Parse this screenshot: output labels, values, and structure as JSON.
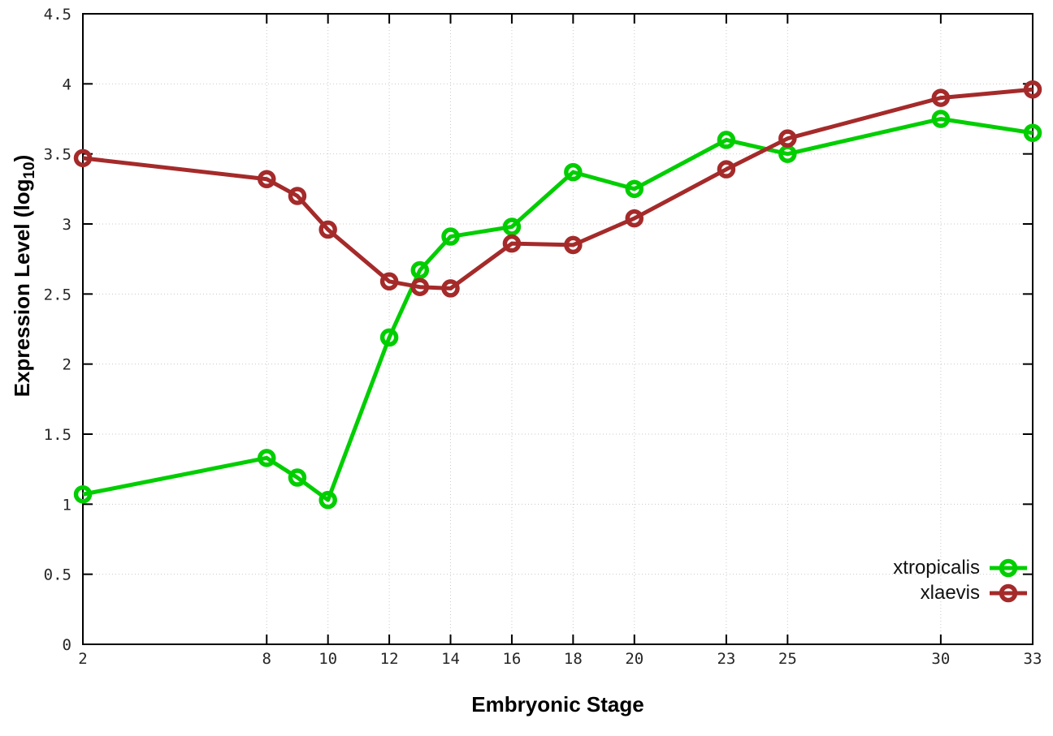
{
  "figure": {
    "background": "#ffffff"
  },
  "chart_data": {
    "type": "line",
    "title": "",
    "xlabel": "Embryonic Stage",
    "ylabel": "Expression Level (log10)",
    "ylabel_prefix": "Expression Level (log",
    "ylabel_sub": "10",
    "ylabel_suffix": ")",
    "xlim": [
      2,
      33
    ],
    "ylim": [
      0,
      4.5
    ],
    "x_ticks": [
      2,
      8,
      10,
      12,
      14,
      16,
      18,
      20,
      23,
      25,
      30,
      33
    ],
    "y_ticks": [
      0,
      0.5,
      1,
      1.5,
      2,
      2.5,
      3,
      3.5,
      4,
      4.5
    ],
    "grid": true,
    "legend_position": "inside-bottom-right",
    "axis_color": "#000000",
    "grid_color": "#c9c9c9",
    "tick_label_color": "#262626",
    "series": [
      {
        "name": "xtropicalis",
        "color": "#00ce00",
        "x": [
          2,
          8,
          9,
          10,
          12,
          13,
          14,
          16,
          18,
          20,
          23,
          25,
          30,
          33
        ],
        "values": [
          1.07,
          1.33,
          1.19,
          1.03,
          2.19,
          2.67,
          2.91,
          2.98,
          3.37,
          3.25,
          3.6,
          3.5,
          3.75,
          3.65
        ]
      },
      {
        "name": "xlaevis",
        "color": "#a52a2a",
        "x": [
          2,
          8,
          9,
          10,
          12,
          13,
          14,
          16,
          18,
          20,
          23,
          25,
          30,
          33
        ],
        "values": [
          3.47,
          3.32,
          3.2,
          2.96,
          2.59,
          2.55,
          2.54,
          2.86,
          2.85,
          3.04,
          3.39,
          3.61,
          3.9,
          3.96
        ]
      }
    ]
  }
}
